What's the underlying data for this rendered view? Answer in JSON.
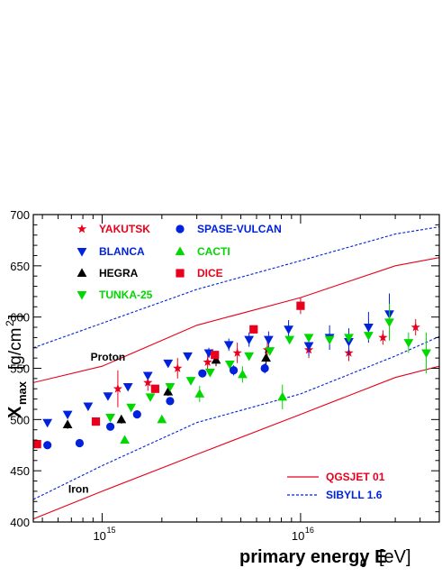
{
  "chart_data": {
    "type": "scatter",
    "xlabel": "primary energy E",
    "xlabel_sub": "0",
    "xlabel_unit": "[eV]",
    "ylabel": "X",
    "ylabel_sub": "max",
    "ylabel_unit": "[g/cm",
    "ylabel_unit_sup": "2",
    "ylabel_unit_close": "]",
    "x_scale": "log",
    "xlim": [
      450000000000000.0,
      5e+16
    ],
    "ylim": [
      400,
      700
    ],
    "x_ticks": [
      {
        "value": 1000000000000000.0,
        "base": "10",
        "exp": "15"
      },
      {
        "value": 1e+16,
        "base": "10",
        "exp": "16"
      }
    ],
    "y_ticks": [
      400,
      450,
      500,
      550,
      600,
      650,
      700
    ],
    "grid": false,
    "legend_placement": "top-left",
    "series": [
      {
        "name": "YAKUTSK",
        "marker": "star",
        "color": "#e8001c",
        "legend_col": 0,
        "legend_row": 0,
        "points": [
          {
            "x": 1200000000000000.0,
            "y": 530,
            "err": 18
          },
          {
            "x": 1700000000000000.0,
            "y": 536,
            "err": 8
          },
          {
            "x": 2400000000000000.0,
            "y": 550,
            "err": 10
          },
          {
            "x": 3400000000000000.0,
            "y": 556,
            "err": 10
          },
          {
            "x": 4800000000000000.0,
            "y": 565,
            "err": 10
          },
          {
            "x": 6800000000000000.0,
            "y": 568,
            "err": 10
          },
          {
            "x": 1.1e+16,
            "y": 568,
            "err": 8
          },
          {
            "x": 1.75e+16,
            "y": 565,
            "err": 8
          },
          {
            "x": 2.6e+16,
            "y": 580,
            "err": 7
          },
          {
            "x": 3.8e+16,
            "y": 590,
            "err": 8
          }
        ]
      },
      {
        "name": "BLANCA",
        "marker": "triangle-down",
        "color": "#0022dd",
        "legend_col": 0,
        "legend_row": 1,
        "points": [
          {
            "x": 530000000000000.0,
            "y": 497,
            "err": 0
          },
          {
            "x": 670000000000000.0,
            "y": 505,
            "err": 0
          },
          {
            "x": 850000000000000.0,
            "y": 513,
            "err": 0
          },
          {
            "x": 1070000000000000.0,
            "y": 523,
            "err": 0
          },
          {
            "x": 1350000000000000.0,
            "y": 532,
            "err": 0
          },
          {
            "x": 1700000000000000.0,
            "y": 543,
            "err": 0
          },
          {
            "x": 2150000000000000.0,
            "y": 555,
            "err": 0
          },
          {
            "x": 2700000000000000.0,
            "y": 562,
            "err": 0
          },
          {
            "x": 3450000000000000.0,
            "y": 565,
            "err": 5
          },
          {
            "x": 4350000000000000.0,
            "y": 573,
            "err": 6
          },
          {
            "x": 5500000000000000.0,
            "y": 578,
            "err": 7
          },
          {
            "x": 6900000000000000.0,
            "y": 578,
            "err": 8
          },
          {
            "x": 8700000000000000.0,
            "y": 588,
            "err": 9
          },
          {
            "x": 1.1e+16,
            "y": 572,
            "err": 10
          },
          {
            "x": 1.4e+16,
            "y": 580,
            "err": 12
          },
          {
            "x": 1.75e+16,
            "y": 576,
            "err": 13
          },
          {
            "x": 2.2e+16,
            "y": 590,
            "err": 15
          },
          {
            "x": 2.8e+16,
            "y": 603,
            "err": 20
          }
        ]
      },
      {
        "name": "HEGRA",
        "marker": "triangle-up",
        "color": "#000000",
        "legend_col": 0,
        "legend_row": 2,
        "points": [
          {
            "x": 670000000000000.0,
            "y": 495,
            "err": 4
          },
          {
            "x": 1250000000000000.0,
            "y": 500,
            "err": 4
          },
          {
            "x": 2150000000000000.0,
            "y": 527,
            "err": 4
          },
          {
            "x": 3750000000000000.0,
            "y": 558,
            "err": 6
          },
          {
            "x": 6700000000000000.0,
            "y": 560,
            "err": 8
          }
        ]
      },
      {
        "name": "TUNKA-25",
        "marker": "triangle-down",
        "color": "#00d800",
        "legend_col": 0,
        "legend_row": 3,
        "points": [
          {
            "x": 1100000000000000.0,
            "y": 502,
            "err": 0
          },
          {
            "x": 1400000000000000.0,
            "y": 512,
            "err": 0
          },
          {
            "x": 1750000000000000.0,
            "y": 522,
            "err": 0
          },
          {
            "x": 2200000000000000.0,
            "y": 532,
            "err": 0
          },
          {
            "x": 2800000000000000.0,
            "y": 538,
            "err": 0
          },
          {
            "x": 3500000000000000.0,
            "y": 546,
            "err": 0
          },
          {
            "x": 4400000000000000.0,
            "y": 554,
            "err": 0
          },
          {
            "x": 5500000000000000.0,
            "y": 562,
            "err": 0
          },
          {
            "x": 7000000000000000.0,
            "y": 567,
            "err": 0
          },
          {
            "x": 8800000000000000.0,
            "y": 578,
            "err": 0
          },
          {
            "x": 1.1e+16,
            "y": 580,
            "err": 0
          },
          {
            "x": 1.4e+16,
            "y": 578,
            "err": 0
          },
          {
            "x": 1.75e+16,
            "y": 580,
            "err": 0
          },
          {
            "x": 2.2e+16,
            "y": 582,
            "err": 0
          },
          {
            "x": 2.8e+16,
            "y": 595,
            "err": 18
          },
          {
            "x": 3.5e+16,
            "y": 575,
            "err": 10
          },
          {
            "x": 4.3e+16,
            "y": 565,
            "err": 20
          }
        ]
      },
      {
        "name": "SPASE-VULCAN",
        "marker": "circle",
        "color": "#0022dd",
        "legend_col": 1,
        "legend_row": 0,
        "points": [
          {
            "x": 530000000000000.0,
            "y": 475,
            "err": 0
          },
          {
            "x": 770000000000000.0,
            "y": 477,
            "err": 0
          },
          {
            "x": 1100000000000000.0,
            "y": 493,
            "err": 0
          },
          {
            "x": 1500000000000000.0,
            "y": 505,
            "err": 0
          },
          {
            "x": 2200000000000000.0,
            "y": 518,
            "err": 0
          },
          {
            "x": 3200000000000000.0,
            "y": 545,
            "err": 0
          },
          {
            "x": 4600000000000000.0,
            "y": 548,
            "err": 5
          },
          {
            "x": 6600000000000000.0,
            "y": 550,
            "err": 5
          }
        ]
      },
      {
        "name": "CACTI",
        "marker": "triangle-up",
        "color": "#00d800",
        "legend_col": 1,
        "legend_row": 1,
        "points": [
          {
            "x": 1300000000000000.0,
            "y": 480,
            "err": 0
          },
          {
            "x": 2000000000000000.0,
            "y": 500,
            "err": 0
          },
          {
            "x": 3100000000000000.0,
            "y": 525,
            "err": 8
          },
          {
            "x": 5100000000000000.0,
            "y": 544,
            "err": 8
          },
          {
            "x": 8100000000000000.0,
            "y": 522,
            "err": 12
          }
        ]
      },
      {
        "name": "DICE",
        "marker": "square",
        "color": "#e8001c",
        "legend_col": 1,
        "legend_row": 2,
        "points": [
          {
            "x": 470000000000000.0,
            "y": 476,
            "err": 0
          },
          {
            "x": 930000000000000.0,
            "y": 498,
            "err": 0
          },
          {
            "x": 1850000000000000.0,
            "y": 530,
            "err": 0
          },
          {
            "x": 3700000000000000.0,
            "y": 563,
            "err": 0
          },
          {
            "x": 5800000000000000.0,
            "y": 588,
            "err": 3
          },
          {
            "x": 1e+16,
            "y": 611,
            "err": 8
          }
        ]
      }
    ],
    "curves": [
      {
        "name": "Proton",
        "model": "QGSJET 01",
        "style": "solid",
        "color": "#e8001c",
        "points": [
          [
            450000000000000.0,
            536
          ],
          [
            1000000000000000.0,
            552
          ],
          [
            3000000000000000.0,
            592
          ],
          [
            1e+16,
            619
          ],
          [
            3e+16,
            650
          ],
          [
            5e+16,
            658
          ]
        ]
      },
      {
        "name": "Iron",
        "model": "QGSJET 01",
        "style": "solid",
        "color": "#e8001c",
        "points": [
          [
            450000000000000.0,
            403
          ],
          [
            1000000000000000.0,
            430
          ],
          [
            3000000000000000.0,
            466
          ],
          [
            1e+16,
            505
          ],
          [
            3e+16,
            541
          ],
          [
            5e+16,
            552
          ]
        ]
      },
      {
        "name": "Proton",
        "model": "SIBYLL 1.6",
        "style": "dashed",
        "color": "#0022dd",
        "points": [
          [
            450000000000000.0,
            570
          ],
          [
            1000000000000000.0,
            594
          ],
          [
            3000000000000000.0,
            627
          ],
          [
            1e+16,
            655
          ],
          [
            3e+16,
            681
          ],
          [
            5e+16,
            688
          ]
        ]
      },
      {
        "name": "Iron",
        "model": "SIBYLL 1.6",
        "style": "dashed",
        "color": "#0022dd",
        "points": [
          [
            450000000000000.0,
            422
          ],
          [
            1000000000000000.0,
            455
          ],
          [
            3000000000000000.0,
            497
          ],
          [
            1e+16,
            525
          ],
          [
            3e+16,
            562
          ],
          [
            5e+16,
            581
          ]
        ]
      }
    ],
    "annotations": [
      {
        "text": "Proton",
        "x": 1100000000000000.0,
        "y": 561
      },
      {
        "text": "Iron",
        "x": 850000000000000.0,
        "y": 432
      }
    ],
    "model_legend": [
      {
        "label": "QGSJET 01",
        "style": "solid",
        "color": "#e8001c",
        "text_color": "#e8001c"
      },
      {
        "label": "SIBYLL 1.6",
        "style": "dashed",
        "color": "#0022dd",
        "text_color": "#0022dd"
      }
    ]
  }
}
